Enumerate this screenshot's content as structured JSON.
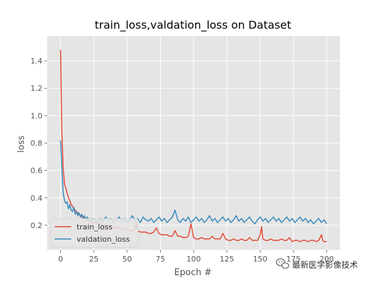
{
  "chart_data": {
    "type": "line",
    "title": "train_loss,valdation_loss on Dataset",
    "xlabel": "Epoch #",
    "ylabel": "loss",
    "xlim": [
      -10,
      210
    ],
    "ylim": [
      0.02,
      1.58
    ],
    "xticks": [
      0,
      25,
      50,
      75,
      100,
      125,
      150,
      175,
      200
    ],
    "yticks": [
      0.2,
      0.4,
      0.6,
      0.8,
      1.0,
      1.2,
      1.4
    ],
    "ytick_labels": [
      "0.2",
      "0.4",
      "0.6",
      "0.8",
      "1.0",
      "1.2",
      "1.4"
    ],
    "grid": true,
    "legend_position": "lower-left",
    "series": [
      {
        "name": "train_loss",
        "color": "#E24A33",
        "points": [
          [
            0,
            1.48
          ],
          [
            1,
            0.88
          ],
          [
            2,
            0.62
          ],
          [
            3,
            0.5
          ],
          [
            4,
            0.47
          ],
          [
            5,
            0.43
          ],
          [
            6,
            0.4
          ],
          [
            7,
            0.38
          ],
          [
            8,
            0.35
          ],
          [
            9,
            0.34
          ],
          [
            10,
            0.32
          ],
          [
            11,
            0.31
          ],
          [
            12,
            0.3
          ],
          [
            13,
            0.29
          ],
          [
            14,
            0.28
          ],
          [
            15,
            0.27
          ],
          [
            16,
            0.26
          ],
          [
            17,
            0.26
          ],
          [
            18,
            0.25
          ],
          [
            19,
            0.24
          ],
          [
            20,
            0.24
          ],
          [
            22,
            0.23
          ],
          [
            24,
            0.22
          ],
          [
            26,
            0.22
          ],
          [
            28,
            0.21
          ],
          [
            30,
            0.21
          ],
          [
            32,
            0.2
          ],
          [
            34,
            0.2
          ],
          [
            36,
            0.19
          ],
          [
            38,
            0.19
          ],
          [
            40,
            0.18
          ],
          [
            42,
            0.19
          ],
          [
            44,
            0.18
          ],
          [
            46,
            0.17
          ],
          [
            48,
            0.17
          ],
          [
            50,
            0.17
          ],
          [
            52,
            0.16
          ],
          [
            54,
            0.16
          ],
          [
            56,
            0.17
          ],
          [
            57,
            0.22
          ],
          [
            58,
            0.16
          ],
          [
            60,
            0.15
          ],
          [
            62,
            0.15
          ],
          [
            64,
            0.15
          ],
          [
            66,
            0.14
          ],
          [
            68,
            0.14
          ],
          [
            70,
            0.15
          ],
          [
            72,
            0.18
          ],
          [
            74,
            0.14
          ],
          [
            76,
            0.13
          ],
          [
            78,
            0.13
          ],
          [
            80,
            0.13
          ],
          [
            82,
            0.12
          ],
          [
            84,
            0.12
          ],
          [
            86,
            0.16
          ],
          [
            88,
            0.12
          ],
          [
            90,
            0.12
          ],
          [
            92,
            0.11
          ],
          [
            94,
            0.11
          ],
          [
            96,
            0.12
          ],
          [
            98,
            0.21
          ],
          [
            100,
            0.11
          ],
          [
            102,
            0.1
          ],
          [
            104,
            0.1
          ],
          [
            106,
            0.11
          ],
          [
            108,
            0.1
          ],
          [
            110,
            0.1
          ],
          [
            112,
            0.1
          ],
          [
            114,
            0.12
          ],
          [
            116,
            0.1
          ],
          [
            118,
            0.1
          ],
          [
            120,
            0.1
          ],
          [
            122,
            0.14
          ],
          [
            124,
            0.1
          ],
          [
            126,
            0.09
          ],
          [
            128,
            0.09
          ],
          [
            130,
            0.1
          ],
          [
            132,
            0.09
          ],
          [
            134,
            0.09
          ],
          [
            136,
            0.1
          ],
          [
            138,
            0.09
          ],
          [
            140,
            0.09
          ],
          [
            142,
            0.11
          ],
          [
            144,
            0.09
          ],
          [
            146,
            0.09
          ],
          [
            148,
            0.09
          ],
          [
            150,
            0.13
          ],
          [
            151,
            0.19
          ],
          [
            152,
            0.1
          ],
          [
            154,
            0.09
          ],
          [
            156,
            0.09
          ],
          [
            158,
            0.1
          ],
          [
            160,
            0.09
          ],
          [
            162,
            0.09
          ],
          [
            164,
            0.09
          ],
          [
            166,
            0.1
          ],
          [
            168,
            0.09
          ],
          [
            170,
            0.09
          ],
          [
            172,
            0.11
          ],
          [
            174,
            0.08
          ],
          [
            176,
            0.09
          ],
          [
            178,
            0.09
          ],
          [
            180,
            0.08
          ],
          [
            182,
            0.09
          ],
          [
            184,
            0.09
          ],
          [
            186,
            0.08
          ],
          [
            188,
            0.09
          ],
          [
            190,
            0.09
          ],
          [
            192,
            0.08
          ],
          [
            194,
            0.09
          ],
          [
            196,
            0.13
          ],
          [
            197,
            0.09
          ],
          [
            198,
            0.08
          ],
          [
            200,
            0.08
          ]
        ]
      },
      {
        "name": "valdation_loss",
        "color": "#348ABD",
        "points": [
          [
            0,
            0.82
          ],
          [
            1,
            0.62
          ],
          [
            2,
            0.44
          ],
          [
            3,
            0.38
          ],
          [
            4,
            0.36
          ],
          [
            5,
            0.37
          ],
          [
            6,
            0.32
          ],
          [
            7,
            0.35
          ],
          [
            8,
            0.31
          ],
          [
            9,
            0.3
          ],
          [
            10,
            0.33
          ],
          [
            11,
            0.28
          ],
          [
            12,
            0.3
          ],
          [
            13,
            0.27
          ],
          [
            14,
            0.29
          ],
          [
            15,
            0.26
          ],
          [
            16,
            0.28
          ],
          [
            17,
            0.25
          ],
          [
            18,
            0.27
          ],
          [
            19,
            0.24
          ],
          [
            20,
            0.26
          ],
          [
            22,
            0.23
          ],
          [
            24,
            0.25
          ],
          [
            26,
            0.24
          ],
          [
            28,
            0.22
          ],
          [
            30,
            0.25
          ],
          [
            32,
            0.23
          ],
          [
            34,
            0.26
          ],
          [
            36,
            0.23
          ],
          [
            38,
            0.25
          ],
          [
            40,
            0.22
          ],
          [
            42,
            0.24
          ],
          [
            44,
            0.26
          ],
          [
            46,
            0.23
          ],
          [
            48,
            0.25
          ],
          [
            50,
            0.22
          ],
          [
            52,
            0.24
          ],
          [
            54,
            0.27
          ],
          [
            56,
            0.23
          ],
          [
            58,
            0.25
          ],
          [
            60,
            0.22
          ],
          [
            62,
            0.26
          ],
          [
            64,
            0.24
          ],
          [
            66,
            0.23
          ],
          [
            68,
            0.25
          ],
          [
            70,
            0.22
          ],
          [
            72,
            0.24
          ],
          [
            74,
            0.26
          ],
          [
            76,
            0.23
          ],
          [
            78,
            0.25
          ],
          [
            80,
            0.22
          ],
          [
            82,
            0.24
          ],
          [
            84,
            0.26
          ],
          [
            86,
            0.31
          ],
          [
            88,
            0.24
          ],
          [
            90,
            0.22
          ],
          [
            92,
            0.25
          ],
          [
            94,
            0.23
          ],
          [
            96,
            0.26
          ],
          [
            98,
            0.22
          ],
          [
            100,
            0.24
          ],
          [
            102,
            0.26
          ],
          [
            104,
            0.23
          ],
          [
            106,
            0.25
          ],
          [
            108,
            0.22
          ],
          [
            110,
            0.24
          ],
          [
            112,
            0.27
          ],
          [
            114,
            0.23
          ],
          [
            116,
            0.25
          ],
          [
            118,
            0.22
          ],
          [
            120,
            0.24
          ],
          [
            122,
            0.26
          ],
          [
            124,
            0.23
          ],
          [
            126,
            0.25
          ],
          [
            128,
            0.22
          ],
          [
            130,
            0.24
          ],
          [
            132,
            0.27
          ],
          [
            134,
            0.23
          ],
          [
            136,
            0.25
          ],
          [
            138,
            0.22
          ],
          [
            140,
            0.24
          ],
          [
            142,
            0.26
          ],
          [
            144,
            0.23
          ],
          [
            146,
            0.21
          ],
          [
            148,
            0.24
          ],
          [
            150,
            0.26
          ],
          [
            152,
            0.23
          ],
          [
            154,
            0.25
          ],
          [
            156,
            0.22
          ],
          [
            158,
            0.24
          ],
          [
            160,
            0.26
          ],
          [
            162,
            0.23
          ],
          [
            164,
            0.25
          ],
          [
            166,
            0.22
          ],
          [
            168,
            0.24
          ],
          [
            170,
            0.26
          ],
          [
            172,
            0.23
          ],
          [
            174,
            0.25
          ],
          [
            176,
            0.22
          ],
          [
            178,
            0.24
          ],
          [
            180,
            0.26
          ],
          [
            182,
            0.23
          ],
          [
            184,
            0.25
          ],
          [
            186,
            0.22
          ],
          [
            188,
            0.24
          ],
          [
            190,
            0.21
          ],
          [
            192,
            0.23
          ],
          [
            194,
            0.25
          ],
          [
            196,
            0.22
          ],
          [
            198,
            0.24
          ],
          [
            200,
            0.21
          ]
        ]
      }
    ]
  },
  "watermark": {
    "text": "最新医学影像技术",
    "icon": "wechat-icon"
  }
}
